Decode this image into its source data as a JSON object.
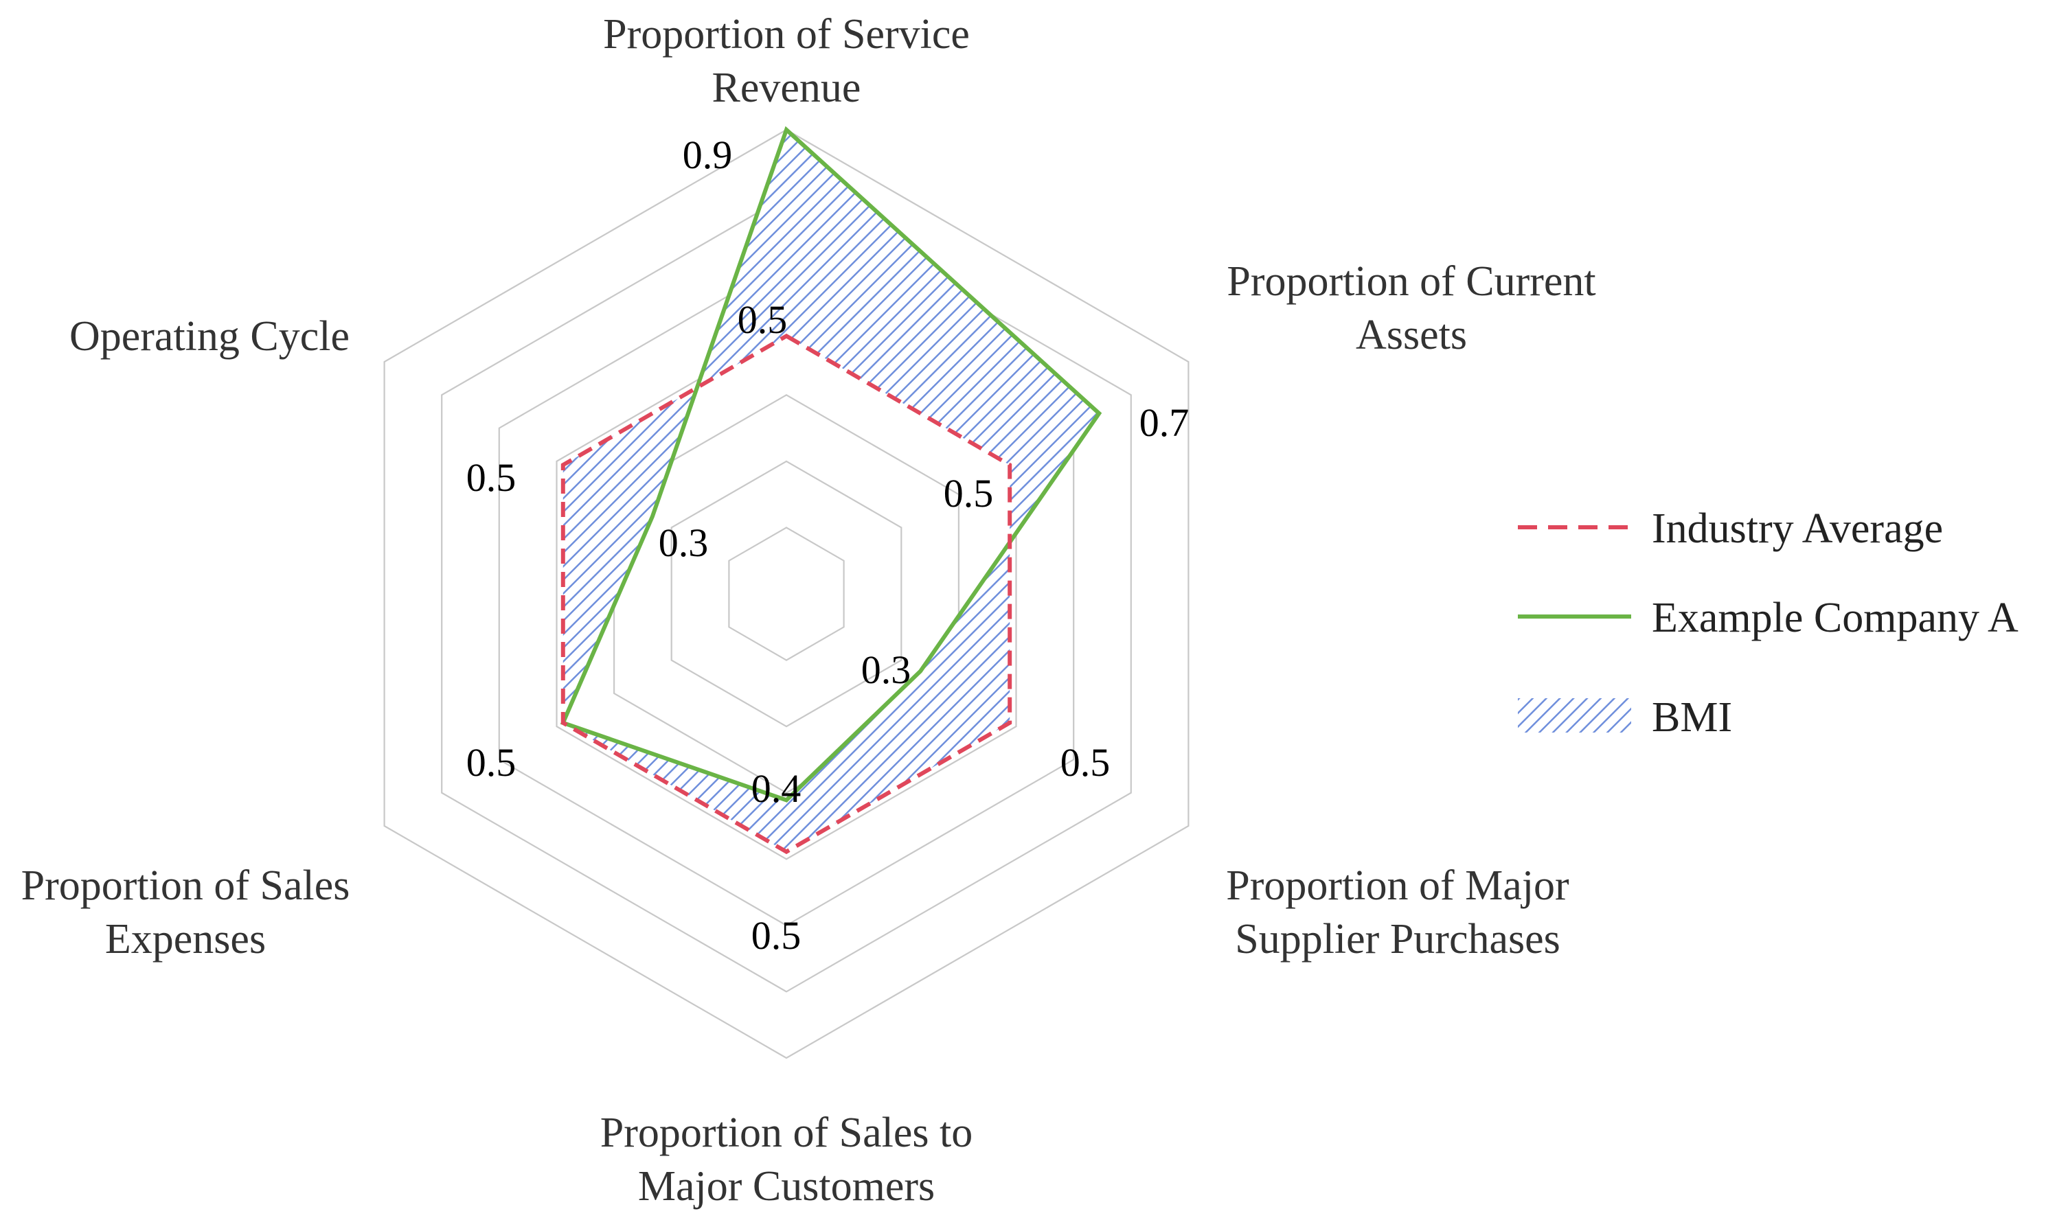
{
  "chart_data": {
    "type": "radar",
    "categories": [
      "Proportion of Service Revenue",
      "Proportion of Current Assets",
      "Proportion of Major Supplier Purchases",
      "Proportion of Sales to Major Customers",
      "Proportion of Sales Expenses",
      "Operating Cycle"
    ],
    "category_label_lines": [
      [
        "Proportion of Service",
        "Revenue"
      ],
      [
        "Proportion of Current",
        "Assets"
      ],
      [
        "Proportion of Major",
        "Supplier Purchases"
      ],
      [
        "Proportion of Sales to",
        "Major Customers"
      ],
      [
        "Proportion of Sales",
        "Expenses"
      ],
      [
        "Operating Cycle"
      ]
    ],
    "rmax": 0.9,
    "grid_levels": 7,
    "grid": true,
    "legend_position": "right",
    "series": [
      {
        "name": "Industry Average",
        "values": [
          0.5,
          0.5,
          0.5,
          0.5,
          0.5,
          0.5
        ],
        "value_labels": [
          "0.5",
          "0.5",
          "0.5",
          "0.5",
          "0.5",
          "0.5"
        ],
        "color": "#e0475b",
        "style": "dashed"
      },
      {
        "name": "Example Company A",
        "values": [
          0.9,
          0.7,
          0.3,
          0.4,
          0.5,
          0.3
        ],
        "value_labels": [
          "0.9",
          "0.7",
          "0.3",
          "0.4",
          "0.5",
          "0.3"
        ],
        "color": "#6ab446",
        "style": "solid"
      }
    ],
    "area": {
      "name": "BMI",
      "color": "#6f8fdc",
      "pattern": "diagonal-hatch"
    }
  }
}
